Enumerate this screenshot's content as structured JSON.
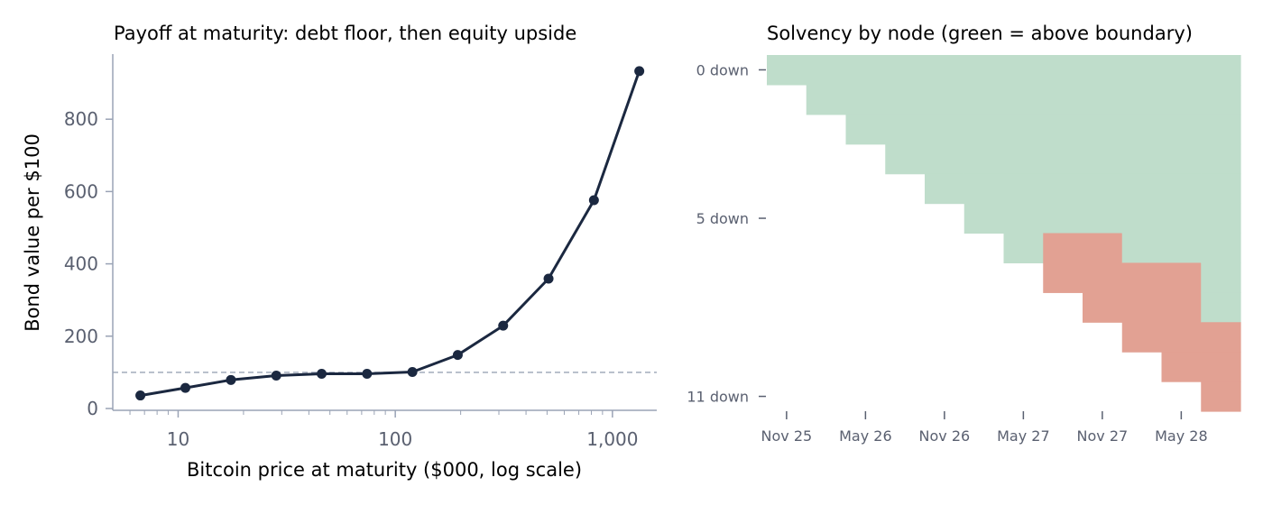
{
  "chart_data": [
    {
      "type": "line",
      "title": "Payoff at maturity: debt floor, then equity upside",
      "xlabel": "Bitcoin price at maturity ($000, log scale)",
      "ylabel": "Bond value per $100",
      "xscale": "log",
      "xlim": [
        5,
        1600
      ],
      "ylim": [
        -5,
        980
      ],
      "xticks": [
        {
          "value": 10,
          "label": "10"
        },
        {
          "value": 100,
          "label": "100"
        },
        {
          "value": 1000,
          "label": "1,000"
        }
      ],
      "yticks": [
        {
          "value": 0,
          "label": "0"
        },
        {
          "value": 200,
          "label": "200"
        },
        {
          "value": 400,
          "label": "400"
        },
        {
          "value": 600,
          "label": "600"
        },
        {
          "value": 800,
          "label": "800"
        }
      ],
      "reference_line": {
        "y": 100,
        "style": "dashed",
        "color": "#9aa3b5"
      },
      "line_color": "#1b2840",
      "axis_color": "#9aa3b5",
      "grid": false,
      "series": [
        {
          "x": [
            6.7,
            10.8,
            17.5,
            28.3,
            45.8,
            74.1,
            119.9,
            194.0,
            313.9,
            507.9,
            821.8,
            1329.6
          ],
          "y": [
            36,
            57,
            79,
            91,
            96,
            96,
            101,
            148,
            229,
            359,
            576,
            933
          ]
        }
      ]
    },
    {
      "type": "heatmap",
      "title": "Solvency by node (green = above boundary)",
      "columns": 12,
      "rows": 12,
      "xticks": [
        "Nov 25",
        "May 26",
        "Nov 26",
        "May 27",
        "Nov 27",
        "May 28"
      ],
      "yticks": [
        {
          "row": 0,
          "label": "0 down"
        },
        {
          "row": 5,
          "label": "5 down"
        },
        {
          "row": 11,
          "label": "11 down"
        }
      ],
      "colors": {
        "solvent": "#bfddcb",
        "insolvent": "#e2a193",
        "empty": "#ffffff"
      },
      "insolvent_from_row": [
        12,
        12,
        12,
        12,
        12,
        12,
        12,
        6,
        6,
        7,
        7,
        9
      ],
      "axis_color": "#5a6070"
    }
  ]
}
